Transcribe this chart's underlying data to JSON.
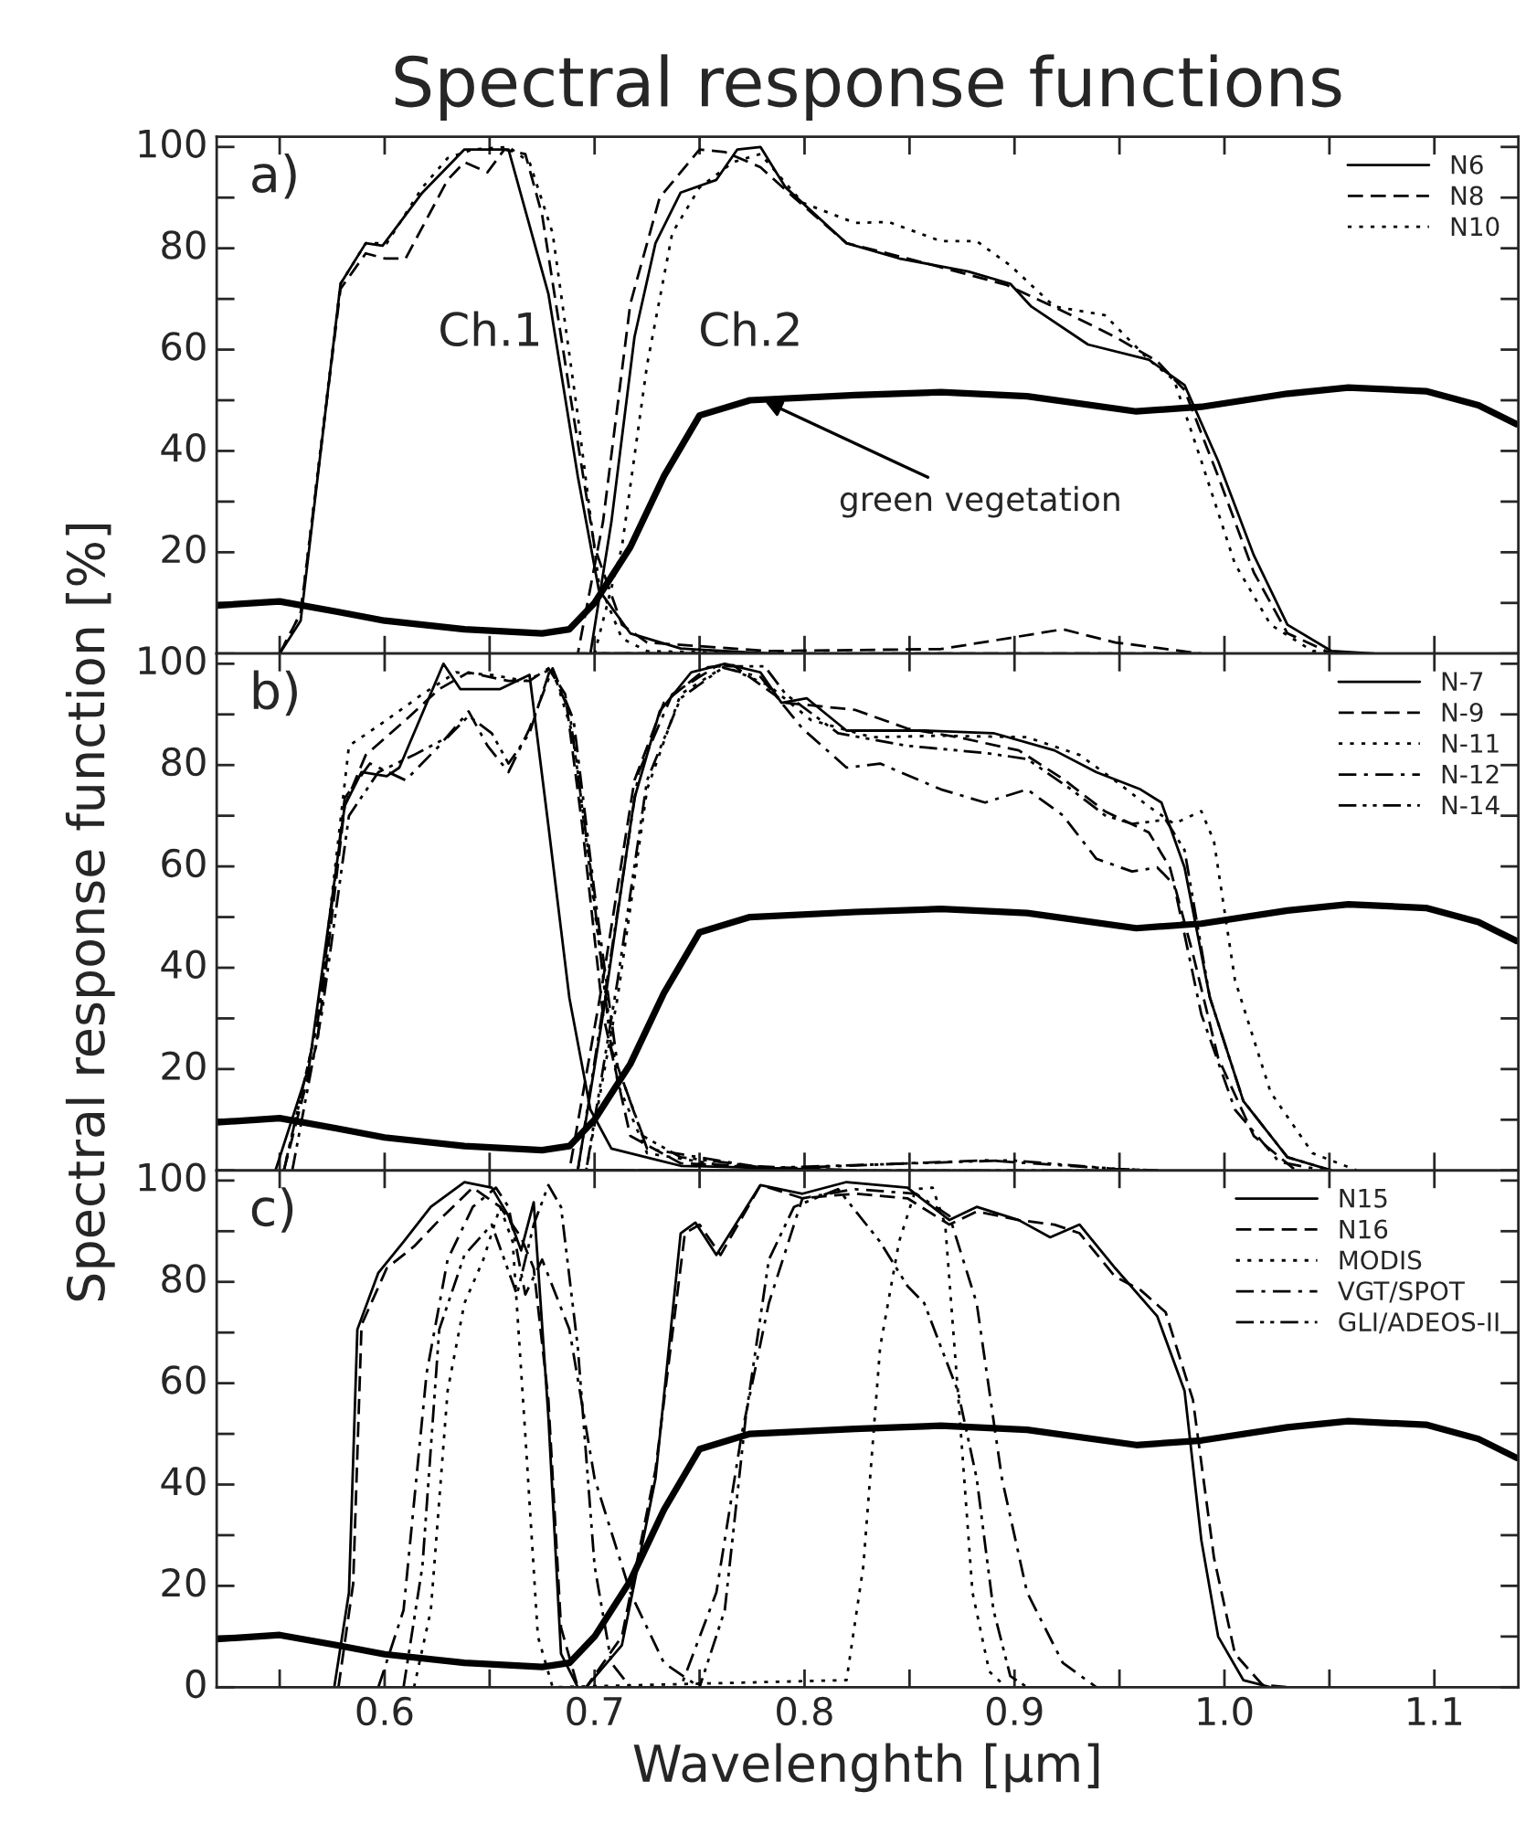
{
  "chart_data": [
    {
      "type": "line",
      "title": "Spectral response functions",
      "xlim": [
        0.52,
        1.14
      ],
      "ylim": [
        0,
        102
      ],
      "xticks": [
        {
          "value": 0.55,
          "label": null
        },
        0.6,
        {
          "value": 0.65,
          "label": null
        },
        0.7,
        {
          "value": 0.75,
          "label": null
        },
        0.8,
        {
          "value": 0.85,
          "label": null
        },
        0.9,
        {
          "value": 0.95,
          "label": null
        },
        1.0,
        {
          "value": 1.05,
          "label": null
        },
        1.1
      ],
      "yticks": [
        {
          "value": 0,
          "label": null
        },
        {
          "value": 10,
          "label": null
        },
        20,
        {
          "value": 30,
          "label": null
        },
        40,
        {
          "value": 50,
          "label": null
        },
        60,
        {
          "value": 70,
          "label": null
        },
        80,
        {
          "value": 90,
          "label": null
        },
        100
      ],
      "tick_labels": "y",
      "legend": "top right",
      "grid": false,
      "annotations": [
        "a)",
        "Ch.1",
        "Ch.2",
        {
          "text": "green vegetation",
          "x": 0.78,
          "y": 50
        }
      ],
      "series": [
        {
          "name": "N6",
          "color": "#000000",
          "line_style": "solid",
          "x": [
            0.55,
            0.56,
            0.579,
            0.591,
            0.599,
            0.618,
            0.638,
            0.659,
            0.678,
            0.692,
            0.702,
            0.717,
            0.741,
            0.783,
            0.698,
            0.708,
            0.719,
            0.729,
            0.741,
            0.758,
            0.768,
            0.779,
            0.791,
            0.82,
            0.845,
            0.878,
            0.898,
            0.908,
            0.935,
            0.964,
            0.981,
            0.997,
            1.014,
            1.03,
            1.051,
            1.071
          ],
          "values": [
            0,
            6.5,
            73,
            81,
            80.5,
            91,
            99.5,
            99.5,
            71,
            35,
            12.6,
            4,
            1,
            0,
            0,
            26,
            62.5,
            81,
            91,
            93.5,
            99.5,
            100,
            92,
            81,
            78,
            75.4,
            73,
            68.5,
            61,
            58,
            53,
            38,
            19.4,
            5.7,
            0.5,
            0
          ]
        },
        {
          "name": "N8",
          "color": "#000000",
          "line_style": "dashed",
          "x": [
            0.55,
            0.56,
            0.579,
            0.591,
            0.6,
            0.61,
            0.63,
            0.638,
            0.649,
            0.657,
            0.667,
            0.675,
            0.688,
            0.7,
            0.713,
            0.725,
            0.783,
            0.865,
            0.898,
            0.923,
            0.948,
            0.989,
            0.692,
            0.704,
            0.717,
            0.731,
            0.75,
            0.762,
            0.779,
            0.795,
            0.82,
            0.849,
            0.896,
            0.923,
            0.948,
            0.968,
            0.981,
            0.997,
            1.014,
            1.03,
            1.051
          ],
          "values": [
            0,
            8,
            72,
            79,
            78,
            78,
            93.5,
            97,
            95,
            99.5,
            98.6,
            86.6,
            52,
            21,
            5.7,
            2.2,
            0.5,
            0.9,
            3.1,
            4.8,
            2.2,
            0,
            0,
            26,
            69,
            90,
            99.5,
            99,
            96,
            90,
            81,
            78,
            72.8,
            67.6,
            62.5,
            57.7,
            52,
            35,
            16,
            4,
            0
          ]
        },
        {
          "name": "N10",
          "color": "#000000",
          "line_style": "dotted",
          "x": [
            0.55,
            0.56,
            0.579,
            0.591,
            0.601,
            0.618,
            0.63,
            0.642,
            0.659,
            0.669,
            0.68,
            0.692,
            0.702,
            0.713,
            0.725,
            0.783,
            0.7,
            0.713,
            0.725,
            0.737,
            0.75,
            0.766,
            0.779,
            0.799,
            0.824,
            0.84,
            0.865,
            0.882,
            0.898,
            0.919,
            0.943,
            0.964,
            0.976,
            0.989,
            1.005,
            1.022,
            1.042,
            1.063
          ],
          "values": [
            0,
            8,
            73,
            81,
            81,
            92,
            97.8,
            99.5,
            100,
            97,
            83,
            47,
            14,
            3,
            0.5,
            0,
            0,
            21,
            57,
            83,
            92,
            97,
            98.6,
            89,
            85,
            85.2,
            81.4,
            81.4,
            76.6,
            68.5,
            66.8,
            58,
            54,
            38,
            17.7,
            5.7,
            0.5,
            0
          ]
        },
        {
          "color": "#000000",
          "line_style": "solid",
          "x": [
            0.52,
            0.55,
            0.577,
            0.6,
            0.638,
            0.675,
            0.688,
            0.7,
            0.717,
            0.733,
            0.75,
            0.774,
            0.824,
            0.865,
            0.906,
            0.958,
            0.989,
            1.03,
            1.059,
            1.096,
            1.121,
            1.139
          ],
          "values": [
            9.5,
            10.3,
            8.3,
            6.5,
            4.8,
            4.0,
            4.8,
            10,
            21,
            35,
            47,
            50,
            51,
            51.6,
            50.8,
            47.8,
            48.7,
            51.3,
            52.5,
            51.8,
            49,
            45.3
          ]
        }
      ]
    },
    {
      "type": "line",
      "ylabel": "Spectral response function [%]",
      "xlim": [
        0.52,
        1.14
      ],
      "ylim": [
        0,
        102
      ],
      "xticks": [
        {
          "value": 0.55,
          "label": null
        },
        0.6,
        {
          "value": 0.65,
          "label": null
        },
        0.7,
        {
          "value": 0.75,
          "label": null
        },
        0.8,
        {
          "value": 0.85,
          "label": null
        },
        0.9,
        {
          "value": 0.95,
          "label": null
        },
        1.0,
        {
          "value": 1.05,
          "label": null
        },
        1.1
      ],
      "yticks": [
        {
          "value": 0,
          "label": null
        },
        {
          "value": 10,
          "label": null
        },
        20,
        {
          "value": 30,
          "label": null
        },
        40,
        {
          "value": 50,
          "label": null
        },
        60,
        {
          "value": 70,
          "label": null
        },
        80,
        {
          "value": 90,
          "label": null
        },
        100
      ],
      "tick_labels": "y",
      "legend": "top right",
      "grid": false,
      "annotations": [
        "b)"
      ],
      "series": [
        {
          "name": "N-7",
          "color": "#000000",
          "line_style": "solid",
          "x": [
            0.548,
            0.564,
            0.581,
            0.589,
            0.601,
            0.607,
            0.628,
            0.636,
            0.655,
            0.669,
            0.678,
            0.688,
            0.698,
            0.708,
            0.741,
            0.824,
            0.692,
            0.704,
            0.719,
            0.731,
            0.746,
            0.762,
            0.779,
            0.789,
            0.801,
            0.82,
            0.857,
            0.89,
            0.919,
            0.939,
            0.96,
            0.97,
            0.981,
            0.993,
            1.009,
            1.03,
            1.051
          ],
          "values": [
            0,
            20.5,
            72,
            78.6,
            77.8,
            79.5,
            100,
            95,
            95,
            97.8,
            68,
            34,
            12,
            4.3,
            0.9,
            0,
            0,
            30.8,
            73.5,
            90.6,
            98.3,
            100,
            98.3,
            92.3,
            93.2,
            86.8,
            86.8,
            86.3,
            82.9,
            78.6,
            75.2,
            72.6,
            59.8,
            34.2,
            13.7,
            2.6,
            0
          ]
        },
        {
          "name": "N-9",
          "color": "#000000",
          "line_style": "dashed",
          "x": [
            0.552,
            0.568,
            0.581,
            0.591,
            0.61,
            0.626,
            0.64,
            0.659,
            0.669,
            0.678,
            0.686,
            0.694,
            0.704,
            0.717,
            0.741,
            0.824,
            0.688,
            0.704,
            0.719,
            0.733,
            0.754,
            0.766,
            0.791,
            0.824,
            0.849,
            0.873,
            0.902,
            0.923,
            0.943,
            0.964,
            0.974,
            0.985,
            0.997,
            1.014,
            1.034
          ],
          "values": [
            0,
            25.6,
            72,
            82,
            88.9,
            95,
            98.3,
            96.6,
            96.6,
            99.1,
            94,
            68.4,
            30.8,
            6.8,
            1.4,
            0,
            0,
            37.6,
            77,
            92.3,
            99.3,
            99.7,
            92.3,
            90.9,
            87.2,
            85.5,
            82.9,
            77.3,
            70.9,
            66.7,
            59.8,
            42.7,
            22.2,
            6.8,
            0
          ]
        },
        {
          "name": "N-11",
          "color": "#000000",
          "line_style": "dotted",
          "x": [
            0.552,
            0.568,
            0.583,
            0.601,
            0.618,
            0.634,
            0.651,
            0.667,
            0.68,
            0.69,
            0.7,
            0.711,
            0.725,
            0.762,
            0.824,
            0.696,
            0.711,
            0.725,
            0.741,
            0.762,
            0.783,
            0.803,
            0.832,
            0.865,
            0.906,
            0.931,
            0.948,
            0.964,
            0.976,
            0.989,
            0.995,
            1.005,
            1.022,
            1.042,
            1.063
          ],
          "values": [
            0,
            29,
            83.8,
            88.9,
            94,
            98.3,
            97.8,
            96.6,
            99.1,
            85.5,
            51.3,
            17.1,
            3.4,
            0.9,
            0,
            0,
            34.2,
            75.2,
            94,
            99.5,
            95.7,
            88.9,
            85.5,
            85.8,
            85.5,
            82,
            76.9,
            71.8,
            68.4,
            70.9,
            65,
            37.6,
            15.4,
            3.4,
            0
          ]
        },
        {
          "name": "N-12",
          "color": "#000000",
          "line_style": "dashdot",
          "x": [
            0.552,
            0.568,
            0.581,
            0.593,
            0.61,
            0.626,
            0.64,
            0.649,
            0.659,
            0.669,
            0.68,
            0.69,
            0.7,
            0.711,
            0.725,
            0.783,
            0.886,
            0.948,
            0.968,
            0.692,
            0.706,
            0.721,
            0.737,
            0.758,
            0.779,
            0.799,
            0.82,
            0.836,
            0.865,
            0.886,
            0.906,
            0.923,
            0.939,
            0.956,
            0.968,
            0.976,
            0.989,
            1.005,
            1.026,
            1.047
          ],
          "values": [
            0,
            29,
            73.5,
            80.3,
            77,
            83.8,
            90.6,
            83.8,
            78.6,
            87.2,
            99.1,
            88.9,
            54.7,
            20.5,
            4.3,
            0.3,
            2,
            0.3,
            0,
            0,
            37.6,
            78.6,
            94,
            99.5,
            97.4,
            87.2,
            79.5,
            80.3,
            75.2,
            72.6,
            75.2,
            70.1,
            61.5,
            59,
            59.8,
            56.4,
            30.8,
            12,
            1.7,
            0
          ]
        },
        {
          "name": "N-14",
          "color": "#000000",
          "line_style": "dashdotdot",
          "x": [
            0.556,
            0.57,
            0.583,
            0.597,
            0.614,
            0.63,
            0.64,
            0.651,
            0.659,
            0.669,
            0.679,
            0.688,
            0.698,
            0.708,
            0.723,
            0.741,
            0.783,
            0.898,
            0.948,
            0.968,
            0.696,
            0.711,
            0.725,
            0.741,
            0.762,
            0.781,
            0.791,
            0.816,
            0.849,
            0.886,
            0.906,
            0.927,
            0.943,
            0.956,
            0.972,
            0.981,
            0.993,
            1.009,
            1.03,
            1.051
          ],
          "values": [
            0,
            30.8,
            70,
            78.6,
            82,
            85.5,
            89.7,
            86.3,
            80.3,
            86.3,
            99.1,
            90.6,
            59.8,
            23.9,
            6.8,
            2.6,
            0.5,
            2,
            0.3,
            0,
            0,
            37.6,
            77,
            93.2,
            99.5,
            99.5,
            94,
            86.3,
            83.8,
            82.4,
            81.2,
            75.2,
            70.1,
            68.4,
            69.2,
            63.2,
            34.2,
            13.7,
            2.6,
            0
          ]
        },
        {
          "color": "#000000",
          "line_style": "solid",
          "x": [
            0.52,
            0.55,
            0.577,
            0.6,
            0.638,
            0.675,
            0.688,
            0.7,
            0.717,
            0.733,
            0.75,
            0.774,
            0.824,
            0.865,
            0.906,
            0.958,
            0.989,
            1.03,
            1.059,
            1.096,
            1.121,
            1.139
          ],
          "values": [
            9.5,
            10.3,
            8.3,
            6.5,
            4.8,
            4.0,
            4.8,
            10,
            21,
            35,
            47,
            50,
            51,
            51.6,
            50.8,
            47.8,
            48.7,
            51.3,
            52.5,
            51.8,
            49,
            45.3
          ]
        }
      ]
    },
    {
      "type": "line",
      "xlabel": "Wavelenghth [µm]",
      "xlim": [
        0.52,
        1.14
      ],
      "ylim": [
        0,
        102
      ],
      "xticks": [
        {
          "value": 0.55,
          "label": null
        },
        0.6,
        {
          "value": 0.65,
          "label": null
        },
        0.7,
        {
          "value": 0.75,
          "label": null
        },
        0.8,
        {
          "value": 0.85,
          "label": null
        },
        0.9,
        {
          "value": 0.95,
          "label": null
        },
        {
          "value": 1.0,
          "label": "1.0"
        },
        {
          "value": 1.05,
          "label": null
        },
        1.1
      ],
      "yticks": [
        0,
        {
          "value": 10,
          "label": null
        },
        20,
        {
          "value": 30,
          "label": null
        },
        40,
        {
          "value": 50,
          "label": null
        },
        60,
        {
          "value": 70,
          "label": null
        },
        80,
        {
          "value": 90,
          "label": null
        },
        100
      ],
      "legend": "top right",
      "grid": false,
      "annotations": [
        "c)"
      ],
      "series": [
        {
          "name": "N15",
          "color": "#000000",
          "line_style": "solid",
          "x": [
            0.576,
            0.583,
            0.587,
            0.597,
            0.609,
            0.622,
            0.638,
            0.651,
            0.659,
            0.665,
            0.671,
            0.678,
            0.684,
            0.692,
            0.696,
            0.713,
            0.729,
            0.741,
            0.748,
            0.758,
            0.779,
            0.799,
            0.82,
            0.849,
            0.869,
            0.882,
            0.902,
            0.917,
            0.931,
            0.948,
            0.968,
            0.981,
            0.989,
            0.997,
            1.009,
            1.022
          ],
          "values": [
            0,
            18.7,
            70.6,
            81.8,
            87.9,
            94.8,
            99.7,
            98.6,
            93,
            86.2,
            95.7,
            53.3,
            6.6,
            0,
            0,
            8.3,
            41.2,
            89.6,
            91.7,
            85.3,
            99.1,
            97.4,
            99.7,
            98.6,
            92.2,
            94.8,
            92.2,
            88.8,
            91.3,
            82.7,
            73.2,
            58.5,
            29,
            10,
            1.4,
            0
          ]
        },
        {
          "name": "N16",
          "color": "#000000",
          "line_style": "dashed",
          "x": [
            0.578,
            0.585,
            0.589,
            0.601,
            0.614,
            0.626,
            0.642,
            0.655,
            0.665,
            0.671,
            0.678,
            0.684,
            0.692,
            0.696,
            0.713,
            0.729,
            0.743,
            0.75,
            0.76,
            0.779,
            0.799,
            0.824,
            0.849,
            0.869,
            0.882,
            0.902,
            0.919,
            0.931,
            0.948,
            0.96,
            0.972,
            0.985,
            0.995,
            1.005,
            1.018,
            1.03
          ],
          "values": [
            0,
            20.4,
            71.5,
            82.7,
            87,
            92.2,
            98.6,
            94.8,
            88.8,
            82.7,
            56.7,
            11.8,
            0,
            0,
            10,
            42.9,
            89.6,
            91.3,
            85.3,
            99.1,
            96.5,
            97.4,
            96.5,
            91.3,
            93.9,
            92.2,
            91.3,
            89.6,
            81,
            78.4,
            74,
            56.7,
            25.6,
            6.6,
            0.5,
            0
          ]
        },
        {
          "name": "MODIS",
          "color": "#000000",
          "line_style": "dotted",
          "x": [
            0.614,
            0.622,
            0.63,
            0.638,
            0.647,
            0.655,
            0.661,
            0.667,
            0.673,
            0.68,
            0.82,
            0.828,
            0.836,
            0.845,
            0.853,
            0.861,
            0.867,
            0.873,
            0.88,
            0.888,
            0.896
          ],
          "values": [
            0,
            15.2,
            58.5,
            75.8,
            84.4,
            94.8,
            87.9,
            49.8,
            10,
            0,
            1.4,
            23.9,
            67.1,
            87.9,
            98.3,
            98.6,
            91.3,
            58.5,
            18.7,
            3.1,
            0
          ]
        },
        {
          "name": "VGT/SPOT",
          "color": "#000000",
          "line_style": "dashdot",
          "x": [
            0.597,
            0.609,
            0.62,
            0.63,
            0.642,
            0.653,
            0.659,
            0.667,
            0.675,
            0.688,
            0.7,
            0.717,
            0.733,
            0.75,
            0.741,
            0.758,
            0.77,
            0.783,
            0.799,
            0.824,
            0.853,
            0.869,
            0.882,
            0.894,
            0.906,
            0.923,
            0.939
          ],
          "values": [
            0,
            15.2,
            62,
            84.4,
            94.8,
            98.6,
            94.8,
            77.5,
            84.4,
            70.6,
            41.2,
            18.7,
            4.8,
            0,
            0,
            18.7,
            49.8,
            75.8,
            96.5,
            98.3,
            97.4,
            93,
            75.8,
            41.2,
            18.7,
            4.8,
            0
          ]
        },
        {
          "name": "GLI/ADEOS-II",
          "color": "#000000",
          "line_style": "dashdotdot",
          "x": [
            0.609,
            0.618,
            0.626,
            0.638,
            0.651,
            0.663,
            0.671,
            0.678,
            0.684,
            0.692,
            0.7,
            0.708,
            0.717,
            0.75,
            0.762,
            0.772,
            0.783,
            0.795,
            0.816,
            0.836,
            0.849,
            0.857,
            0.865,
            0.873,
            0.882,
            0.89,
            0.898,
            0.906
          ],
          "values": [
            0,
            23.9,
            70.6,
            85.3,
            91.3,
            77.5,
            91.3,
            99.1,
            94.8,
            67.1,
            23.9,
            4.8,
            0,
            0,
            15.2,
            53.3,
            84.4,
            94.8,
            98.3,
            87.9,
            79.2,
            75.8,
            67.1,
            58.5,
            41.2,
            15.2,
            2.2,
            0
          ]
        },
        {
          "color": "#000000",
          "line_style": "solid",
          "x": [
            0.52,
            0.55,
            0.577,
            0.6,
            0.638,
            0.675,
            0.688,
            0.7,
            0.717,
            0.733,
            0.75,
            0.774,
            0.824,
            0.865,
            0.906,
            0.958,
            0.989,
            1.03,
            1.059,
            1.096,
            1.121,
            1.139
          ],
          "values": [
            9.5,
            10.3,
            8.3,
            6.5,
            4.8,
            4.0,
            4.8,
            10,
            21,
            35,
            47,
            50,
            51,
            51.6,
            50.8,
            47.8,
            48.7,
            51.3,
            52.5,
            51.8,
            49,
            45.3
          ]
        }
      ]
    }
  ]
}
